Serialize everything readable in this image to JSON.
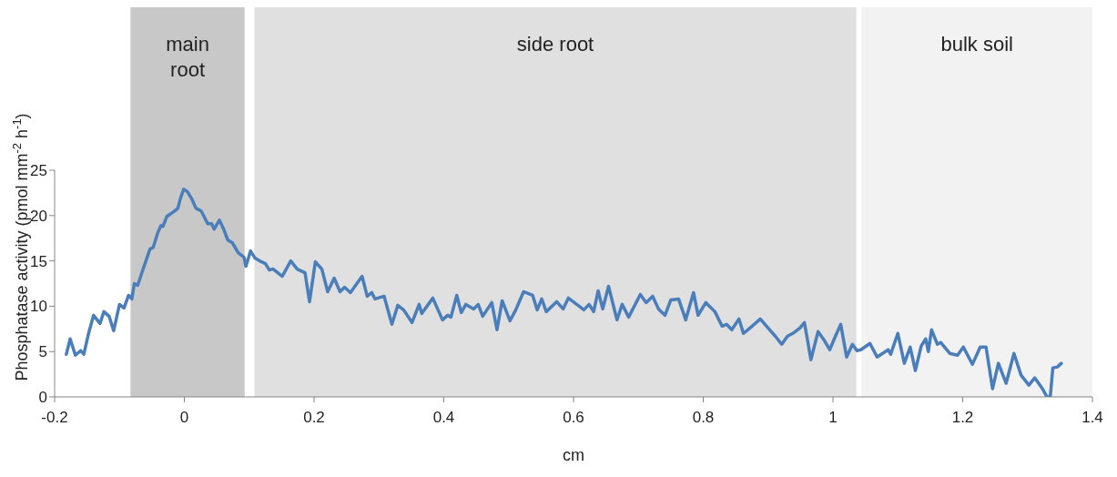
{
  "chart_data": {
    "type": "line",
    "xlabel": "cm",
    "ylabel": "Phosphatase activity (pmol mm$^{-2}$ h$^{-1}$)",
    "xlim": [
      -0.2,
      1.4
    ],
    "xticks": [
      -0.2,
      0,
      0.2,
      0.4,
      0.6,
      0.8,
      1,
      1.2,
      1.4
    ],
    "ylim": [
      0,
      25
    ],
    "yticks": [
      0,
      5,
      10,
      15,
      20,
      25
    ],
    "grid": false,
    "legend": false,
    "marker": "none",
    "line_style": "solid",
    "bands": [
      {
        "axis": "x",
        "from": -0.083,
        "to": 0.093,
        "label": "main root",
        "color": "#c8c8c8"
      },
      {
        "axis": "x",
        "from": 0.108,
        "to": 1.036,
        "label": "side root",
        "color": "#e0e0e0"
      },
      {
        "axis": "x",
        "from": 1.044,
        "to": 1.4,
        "label": "bulk soil",
        "color": "#f2f2f2"
      }
    ],
    "series": [
      {
        "color": "#4a7ebb",
        "x": [
          -0.182,
          -0.176,
          -0.168,
          -0.16,
          -0.155,
          -0.148,
          -0.14,
          -0.13,
          -0.124,
          -0.116,
          -0.109,
          -0.1,
          -0.093,
          -0.086,
          -0.081,
          -0.077,
          -0.072,
          -0.064,
          -0.053,
          -0.048,
          -0.041,
          -0.036,
          -0.033,
          -0.027,
          -0.017,
          -0.01,
          -0.006,
          -0.001,
          0.004,
          0.011,
          0.018,
          0.026,
          0.036,
          0.042,
          0.046,
          0.054,
          0.06,
          0.067,
          0.074,
          0.083,
          0.092,
          0.095,
          0.102,
          0.109,
          0.116,
          0.125,
          0.131,
          0.137,
          0.151,
          0.164,
          0.174,
          0.186,
          0.193,
          0.202,
          0.212,
          0.221,
          0.231,
          0.24,
          0.247,
          0.256,
          0.274,
          0.282,
          0.289,
          0.294,
          0.308,
          0.32,
          0.329,
          0.338,
          0.351,
          0.362,
          0.366,
          0.383,
          0.398,
          0.406,
          0.411,
          0.42,
          0.427,
          0.434,
          0.446,
          0.453,
          0.46,
          0.474,
          0.482,
          0.49,
          0.502,
          0.511,
          0.523,
          0.537,
          0.544,
          0.551,
          0.558,
          0.574,
          0.584,
          0.592,
          0.605,
          0.616,
          0.624,
          0.631,
          0.638,
          0.645,
          0.654,
          0.667,
          0.675,
          0.685,
          0.703,
          0.712,
          0.722,
          0.731,
          0.741,
          0.75,
          0.762,
          0.773,
          0.785,
          0.792,
          0.804,
          0.818,
          0.829,
          0.836,
          0.844,
          0.855,
          0.862,
          0.872,
          0.888,
          0.9,
          0.911,
          0.921,
          0.93,
          0.938,
          0.949,
          0.956,
          0.966,
          0.977,
          0.986,
          0.995,
          1.002,
          1.012,
          1.021,
          1.03,
          1.037,
          1.043,
          1.057,
          1.068,
          1.085,
          1.089,
          1.1,
          1.11,
          1.119,
          1.127,
          1.136,
          1.143,
          1.147,
          1.152,
          1.161,
          1.166,
          1.18,
          1.192,
          1.201,
          1.215,
          1.227,
          1.236,
          1.246,
          1.255,
          1.267,
          1.279,
          1.29,
          1.302,
          1.311,
          1.323,
          1.33,
          1.335,
          1.339,
          1.346,
          1.352
        ],
        "values": [
          4.7,
          6.4,
          4.6,
          5.1,
          4.7,
          6.9,
          9.0,
          8.1,
          9.4,
          8.9,
          7.3,
          10.2,
          9.8,
          11.2,
          10.8,
          12.5,
          12.3,
          14.0,
          16.3,
          16.5,
          18.1,
          18.9,
          18.8,
          19.9,
          20.4,
          20.8,
          21.9,
          22.9,
          22.7,
          21.9,
          20.8,
          20.5,
          19.1,
          19.1,
          18.5,
          19.5,
          18.6,
          17.3,
          17.0,
          15.9,
          15.4,
          14.4,
          16.1,
          15.3,
          15.0,
          14.7,
          14.0,
          14.1,
          13.3,
          15.0,
          14.1,
          13.7,
          10.5,
          14.9,
          14.1,
          11.6,
          13.1,
          11.6,
          12.1,
          11.5,
          13.3,
          11.1,
          11.5,
          10.8,
          11.1,
          8.0,
          10.1,
          9.6,
          8.2,
          10.2,
          9.2,
          10.9,
          8.5,
          9.0,
          8.8,
          11.2,
          9.3,
          10.2,
          9.7,
          10.2,
          8.9,
          10.4,
          7.4,
          10.6,
          8.4,
          9.6,
          11.6,
          11.2,
          9.6,
          10.8,
          9.4,
          10.5,
          9.7,
          10.9,
          10.2,
          9.6,
          10.2,
          9.4,
          11.7,
          9.7,
          12.2,
          8.5,
          10.2,
          8.8,
          11.3,
          10.4,
          11.1,
          9.7,
          9.0,
          10.7,
          10.8,
          8.5,
          11.5,
          9.0,
          10.4,
          9.4,
          7.8,
          8.0,
          7.4,
          8.6,
          7.0,
          7.6,
          8.6,
          7.6,
          6.7,
          5.8,
          6.7,
          7.0,
          7.6,
          8.2,
          4.1,
          7.2,
          6.3,
          5.2,
          6.4,
          8.0,
          4.4,
          5.8,
          5.1,
          5.2,
          5.9,
          4.4,
          5.2,
          4.7,
          7.0,
          3.7,
          5.5,
          2.9,
          5.6,
          6.4,
          5.0,
          7.4,
          5.8,
          6.0,
          4.8,
          4.6,
          5.5,
          3.6,
          5.5,
          5.5,
          0.9,
          3.7,
          1.5,
          4.8,
          2.4,
          1.3,
          2.1,
          0.9,
          0,
          0,
          3.2,
          3.3,
          3.7
        ]
      }
    ]
  }
}
